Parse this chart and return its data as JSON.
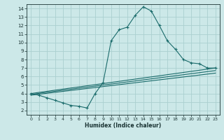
{
  "title": "",
  "xlabel": "Humidex (Indice chaleur)",
  "ylabel": "",
  "bg_color": "#cce8e8",
  "grid_color": "#aad0d0",
  "line_color": "#1a6b6b",
  "xlim": [
    -0.5,
    23.5
  ],
  "ylim": [
    1.5,
    14.5
  ],
  "xticks": [
    0,
    1,
    2,
    3,
    4,
    5,
    6,
    7,
    8,
    9,
    10,
    11,
    12,
    13,
    14,
    15,
    16,
    17,
    18,
    19,
    20,
    21,
    22,
    23
  ],
  "yticks": [
    2,
    3,
    4,
    5,
    6,
    7,
    8,
    9,
    10,
    11,
    12,
    13,
    14
  ],
  "series": [
    [
      0,
      4.0
    ],
    [
      1,
      3.8
    ],
    [
      2,
      3.5
    ],
    [
      3,
      3.2
    ],
    [
      4,
      2.9
    ],
    [
      5,
      2.6
    ],
    [
      6,
      2.5
    ],
    [
      7,
      2.3
    ],
    [
      8,
      4.0
    ],
    [
      9,
      5.3
    ],
    [
      10,
      10.2
    ],
    [
      11,
      11.5
    ],
    [
      12,
      11.8
    ],
    [
      13,
      13.2
    ],
    [
      14,
      14.2
    ],
    [
      15,
      13.7
    ],
    [
      16,
      12.0
    ],
    [
      17,
      10.2
    ],
    [
      18,
      9.2
    ],
    [
      19,
      8.0
    ],
    [
      20,
      7.6
    ],
    [
      21,
      7.5
    ],
    [
      22,
      7.0
    ],
    [
      23,
      7.0
    ]
  ],
  "line2": [
    [
      0,
      4.0
    ],
    [
      23,
      7.0
    ]
  ],
  "line3": [
    [
      0,
      3.9
    ],
    [
      23,
      6.7
    ]
  ],
  "line4": [
    [
      0,
      3.8
    ],
    [
      23,
      6.4
    ]
  ]
}
